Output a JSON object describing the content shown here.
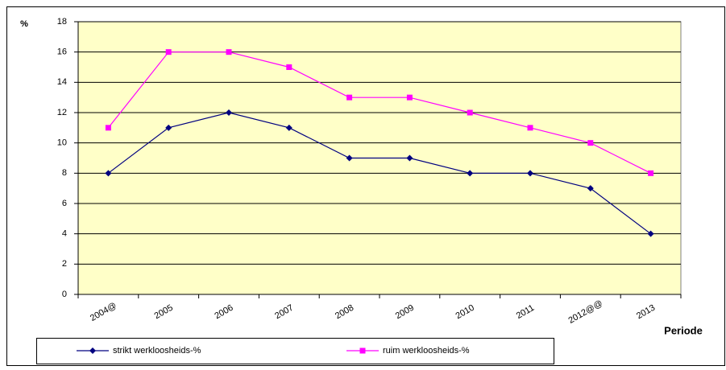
{
  "chart_data": {
    "type": "line",
    "y_label": "%",
    "x_label": "Periode",
    "categories": [
      "2004@",
      "2005",
      "2006",
      "2007",
      "2008",
      "2009",
      "2010",
      "2011",
      "2012@@",
      "2013"
    ],
    "series": [
      {
        "name": "strikt werkloosheids-%",
        "color": "#000080",
        "marker": "diamond",
        "values": [
          8,
          11,
          12,
          11,
          9,
          9,
          8,
          8,
          7,
          4
        ]
      },
      {
        "name": "ruim werkloosheids-%",
        "color": "#ff00ff",
        "marker": "square",
        "values": [
          11,
          16,
          16,
          15,
          13,
          13,
          12,
          11,
          10,
          8
        ]
      }
    ],
    "ylim": [
      0,
      18
    ],
    "yticks": [
      0,
      2,
      4,
      6,
      8,
      10,
      12,
      14,
      16,
      18
    ],
    "grid": true,
    "plot_background": "#ffffc8",
    "legend": "bottom"
  }
}
